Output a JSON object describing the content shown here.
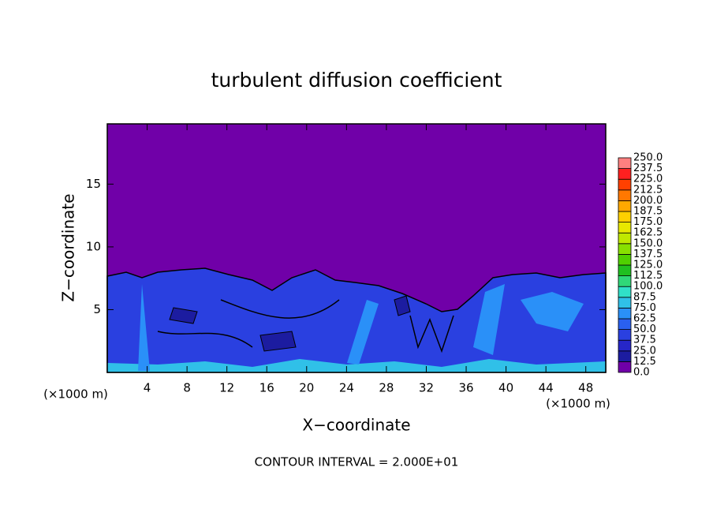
{
  "chart_data": {
    "type": "contour",
    "title": "turbulent diffusion coefficient",
    "xlabel": "X−coordinate",
    "ylabel": "Z−coordinate",
    "x_unit": "(×1000 m)",
    "annotation": "CONTOUR INTERVAL = 2.000E+01",
    "xlim": [
      0,
      50
    ],
    "ylim": [
      0,
      19.8
    ],
    "xticks": [
      4,
      8,
      12,
      16,
      20,
      24,
      28,
      32,
      36,
      40,
      44,
      48
    ],
    "yticks": [
      5,
      10,
      15
    ],
    "colorbar": {
      "levels": [
        {
          "value": 0,
          "label": "0.0"
        },
        {
          "value": 12.5,
          "label": "12.5"
        },
        {
          "value": 25,
          "label": "25.0"
        },
        {
          "value": 37.5,
          "label": "37.5"
        },
        {
          "value": 50,
          "label": "50.0"
        },
        {
          "value": 62.5,
          "label": "62.5"
        },
        {
          "value": 75,
          "label": "75.0"
        },
        {
          "value": 87.5,
          "label": "87.5"
        },
        {
          "value": 100,
          "label": "100.0"
        },
        {
          "value": 112.5,
          "label": "112.5"
        },
        {
          "value": 125,
          "label": "125.0"
        },
        {
          "value": 137.5,
          "label": "137.5"
        },
        {
          "value": 150,
          "label": "150.0"
        },
        {
          "value": 162.5,
          "label": "162.5"
        },
        {
          "value": 175,
          "label": "175.0"
        },
        {
          "value": 187.5,
          "label": "187.5"
        },
        {
          "value": 200,
          "label": "200.0"
        },
        {
          "value": 212.5,
          "label": "212.5"
        },
        {
          "value": 225,
          "label": "225.0"
        },
        {
          "value": 237.5,
          "label": "237.5"
        },
        {
          "value": 250,
          "label": "250.0"
        }
      ],
      "colors": [
        "#7000a8",
        "#1c1ca0",
        "#2626c8",
        "#2a40e0",
        "#2a60f0",
        "#2a90f8",
        "#30c0e8",
        "#30e0c8",
        "#30d878",
        "#20c020",
        "#50d000",
        "#88e000",
        "#c0e800",
        "#e8e800",
        "#ffd000",
        "#ffa800",
        "#ff7800",
        "#ff4000",
        "#ff2020",
        "#ff8080"
      ]
    }
  }
}
